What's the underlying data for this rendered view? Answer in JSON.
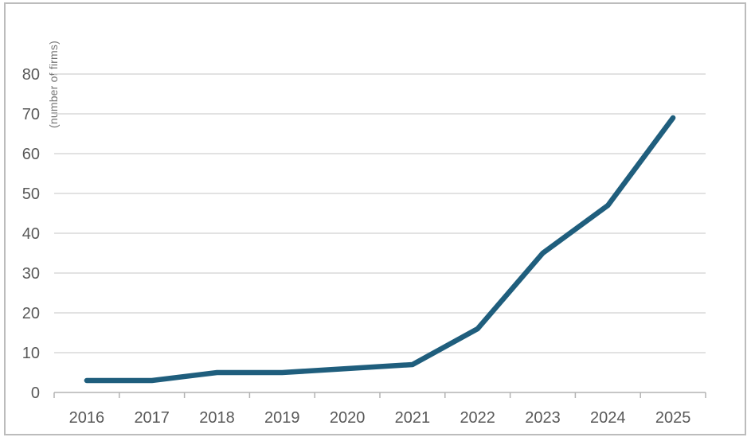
{
  "figure": {
    "background": "#ffffff",
    "border_color": "#bcbcbc"
  },
  "chart_data": {
    "type": "line",
    "title": "",
    "xlabel": "",
    "ylabel": "(number of firms)",
    "categories": [
      "2016",
      "2017",
      "2018",
      "2019",
      "2020",
      "2021",
      "2022",
      "2023",
      "2024",
      "2025"
    ],
    "values": [
      3,
      3,
      5,
      5,
      6,
      7,
      16,
      35,
      47,
      69
    ],
    "y_ticks": [
      0,
      10,
      20,
      30,
      40,
      50,
      60,
      70,
      80
    ],
    "ylim": [
      0,
      80
    ],
    "grid": "horizontal-only",
    "legend": "none",
    "colors": {
      "line": "#1f5e7d",
      "gridline": "#d9d9d9",
      "axis": "#b3b3b3",
      "tick_label": "#595959",
      "axis_title": "#767676"
    }
  }
}
